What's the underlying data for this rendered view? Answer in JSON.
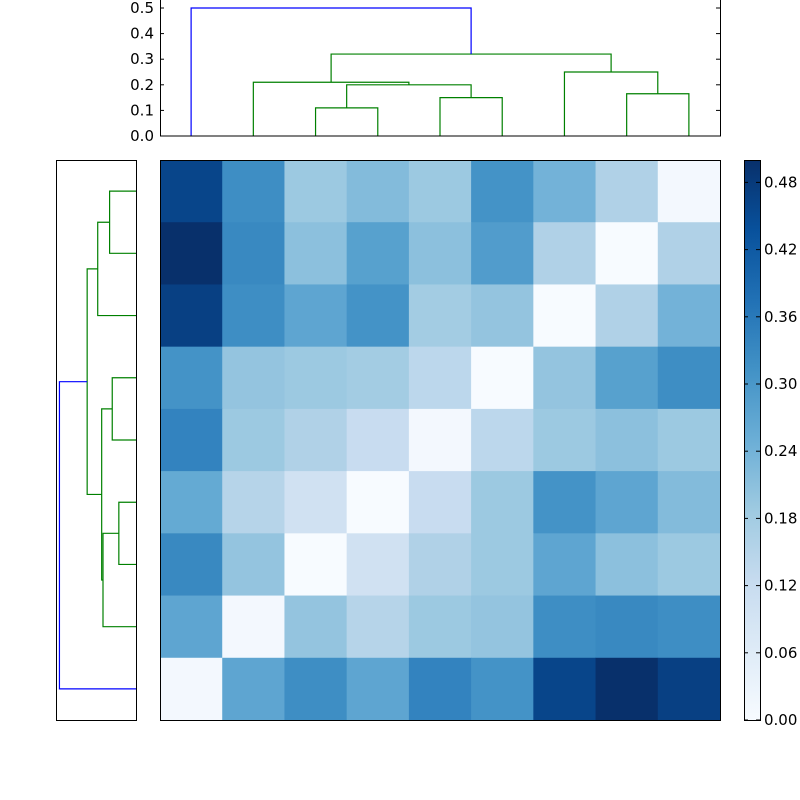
{
  "chart_data": [
    {
      "type": "heatmap",
      "rows": 9,
      "cols": 9,
      "values": [
        [
          0.46,
          0.32,
          0.19,
          0.22,
          0.19,
          0.31,
          0.24,
          0.16,
          0.01
        ],
        [
          0.5,
          0.33,
          0.21,
          0.28,
          0.21,
          0.29,
          0.16,
          0.0,
          0.16
        ],
        [
          0.47,
          0.32,
          0.27,
          0.31,
          0.18,
          0.2,
          0.0,
          0.16,
          0.24
        ],
        [
          0.31,
          0.2,
          0.19,
          0.18,
          0.14,
          0.0,
          0.2,
          0.28,
          0.32
        ],
        [
          0.34,
          0.19,
          0.16,
          0.12,
          0.01,
          0.14,
          0.19,
          0.21,
          0.19
        ],
        [
          0.26,
          0.15,
          0.1,
          0.0,
          0.12,
          0.19,
          0.31,
          0.27,
          0.22
        ],
        [
          0.33,
          0.2,
          0.0,
          0.1,
          0.16,
          0.19,
          0.27,
          0.21,
          0.19
        ],
        [
          0.27,
          0.01,
          0.2,
          0.15,
          0.19,
          0.2,
          0.32,
          0.33,
          0.32
        ],
        [
          0.01,
          0.27,
          0.32,
          0.27,
          0.34,
          0.31,
          0.46,
          0.5,
          0.47
        ]
      ],
      "colorbar": {
        "vmin": 0.0,
        "vmax": 0.5,
        "ticks": [
          "0.00",
          "0.06",
          "0.12",
          "0.18",
          "0.24",
          "0.30",
          "0.36",
          "0.42",
          "0.48"
        ],
        "colors": [
          "#f7fbff",
          "#deebf7",
          "#c6dbef",
          "#9ecae1",
          "#6baed6",
          "#4292c6",
          "#2171b5",
          "#08519c",
          "#08306b"
        ]
      }
    },
    {
      "type": "dendrogram",
      "orientation": "top",
      "ylim": [
        0.0,
        0.5
      ],
      "yticks": [
        "0.0",
        "0.1",
        "0.2",
        "0.3",
        "0.4",
        "0.5"
      ],
      "leaf_count": 9,
      "links": [
        {
          "left": 2.0,
          "right": 3.0,
          "left_h": 0.0,
          "right_h": 0.0,
          "height": 0.11,
          "color": "#008000"
        },
        {
          "left": 2.5,
          "right": 4.5,
          "left_h": 0.11,
          "right_h": 0.15,
          "height": 0.2,
          "color": "#008000"
        },
        {
          "left": 1.0,
          "right": 3.5,
          "left_h": 0.0,
          "right_h": 0.2,
          "height": 0.21,
          "color": "#008000"
        },
        {
          "left": 4.0,
          "right": 5.0,
          "left_h": 0.0,
          "right_h": 0.0,
          "height": 0.15,
          "color": "#008000"
        },
        {
          "left": 7.0,
          "right": 8.0,
          "left_h": 0.0,
          "right_h": 0.0,
          "height": 0.165,
          "color": "#008000"
        },
        {
          "left": 6.0,
          "right": 7.5,
          "left_h": 0.0,
          "right_h": 0.165,
          "height": 0.25,
          "color": "#008000"
        },
        {
          "left": 2.25,
          "right": 6.75,
          "left_h": 0.21,
          "right_h": 0.25,
          "height": 0.32,
          "color": "#008000"
        },
        {
          "left": 0.0,
          "right": 4.5,
          "left_h": 0.0,
          "right_h": 0.32,
          "height": 0.5,
          "color": "#0000ff"
        }
      ]
    },
    {
      "type": "dendrogram",
      "orientation": "left",
      "ylim": [
        0.0,
        0.5
      ],
      "leaf_count": 9,
      "links": [
        {
          "left": 0.0,
          "right": 1.0,
          "left_h": 0.0,
          "right_h": 0.0,
          "height": 0.2,
          "color": "#008000"
        },
        {
          "left": 0.5,
          "right": 2.0,
          "left_h": 0.2,
          "right_h": 0.0,
          "height": 0.29,
          "color": "#008000"
        },
        {
          "left": 3.0,
          "right": 4.0,
          "left_h": 0.0,
          "right_h": 0.0,
          "height": 0.18,
          "color": "#008000"
        },
        {
          "left": 5.0,
          "right": 6.0,
          "left_h": 0.0,
          "right_h": 0.0,
          "height": 0.13,
          "color": "#008000"
        },
        {
          "left": 5.5,
          "right": 7.0,
          "left_h": 0.13,
          "right_h": 0.0,
          "height": 0.25,
          "color": "#008000"
        },
        {
          "left": 3.5,
          "right": 6.25,
          "left_h": 0.18,
          "right_h": 0.25,
          "height": 0.26,
          "color": "#008000"
        },
        {
          "left": 1.25,
          "right": 4.875,
          "left_h": 0.29,
          "right_h": 0.26,
          "height": 0.37,
          "color": "#008000"
        },
        {
          "left": 3.0625,
          "right": 8.0,
          "left_h": 0.37,
          "right_h": 0.0,
          "height": 0.58,
          "color": "#0000ff"
        }
      ]
    }
  ]
}
